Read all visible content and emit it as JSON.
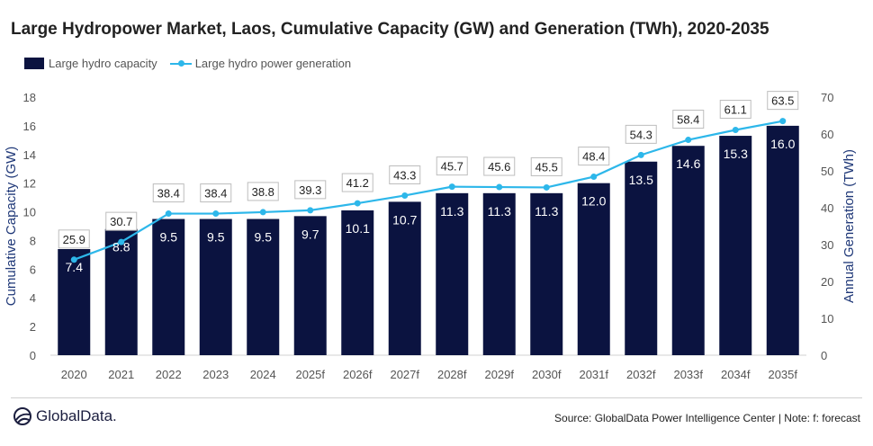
{
  "title": "Large Hydropower Market, Laos, Cumulative Capacity (GW) and Generation (TWh), 2020-2035",
  "source": "Source: GlobalData Power Intelligence Center | Note: f: forecast",
  "logo_text": "GlobalData.",
  "colors": {
    "bar": "#0b1340",
    "line": "#2db7ea",
    "axis_text": "#555555",
    "axis_title": "#1f3878"
  },
  "chart_data": {
    "type": "bar+line",
    "categories": [
      "2020",
      "2021",
      "2022",
      "2023",
      "2024",
      "2025f",
      "2026f",
      "2027f",
      "2028f",
      "2029f",
      "2030f",
      "2031f",
      "2032f",
      "2033f",
      "2034f",
      "2035f"
    ],
    "series": [
      {
        "name": "Large hydro capacity",
        "type": "bar",
        "axis": "left",
        "values": [
          7.4,
          8.8,
          9.5,
          9.5,
          9.5,
          9.7,
          10.1,
          10.7,
          11.3,
          11.3,
          11.3,
          12.0,
          13.5,
          14.6,
          15.3,
          16.0
        ],
        "labels": [
          "7.4",
          "8.8",
          "9.5",
          "9.5",
          "9.5",
          "9.7",
          "10.1",
          "10.7",
          "11.3",
          "11.3",
          "11.3",
          "12.0",
          "13.5",
          "14.6",
          "15.3",
          "16.0"
        ]
      },
      {
        "name": "Large hydro power generation",
        "type": "line",
        "axis": "right",
        "values": [
          25.9,
          30.7,
          38.4,
          38.4,
          38.8,
          39.3,
          41.2,
          43.3,
          45.7,
          45.6,
          45.5,
          48.4,
          54.3,
          58.4,
          61.1,
          63.5
        ],
        "labels": [
          "25.9",
          "30.7",
          "38.4",
          "38.4",
          "38.8",
          "39.3",
          "41.2",
          "43.3",
          "45.7",
          "45.6",
          "45.5",
          "48.4",
          "54.3",
          "58.4",
          "61.1",
          "63.5"
        ]
      }
    ],
    "y_left": {
      "label": "Cumulative Capacity (GW)",
      "min": 0,
      "max": 18,
      "ticks": [
        "0",
        "2",
        "4",
        "6",
        "8",
        "10",
        "12",
        "14",
        "16",
        "18"
      ]
    },
    "y_right": {
      "label": "Annual Generation (TWh)",
      "min": 0,
      "max": 70,
      "ticks": [
        "0",
        "10",
        "20",
        "30",
        "40",
        "50",
        "60",
        "70"
      ]
    },
    "grid": false,
    "legend_position": "top-left"
  }
}
